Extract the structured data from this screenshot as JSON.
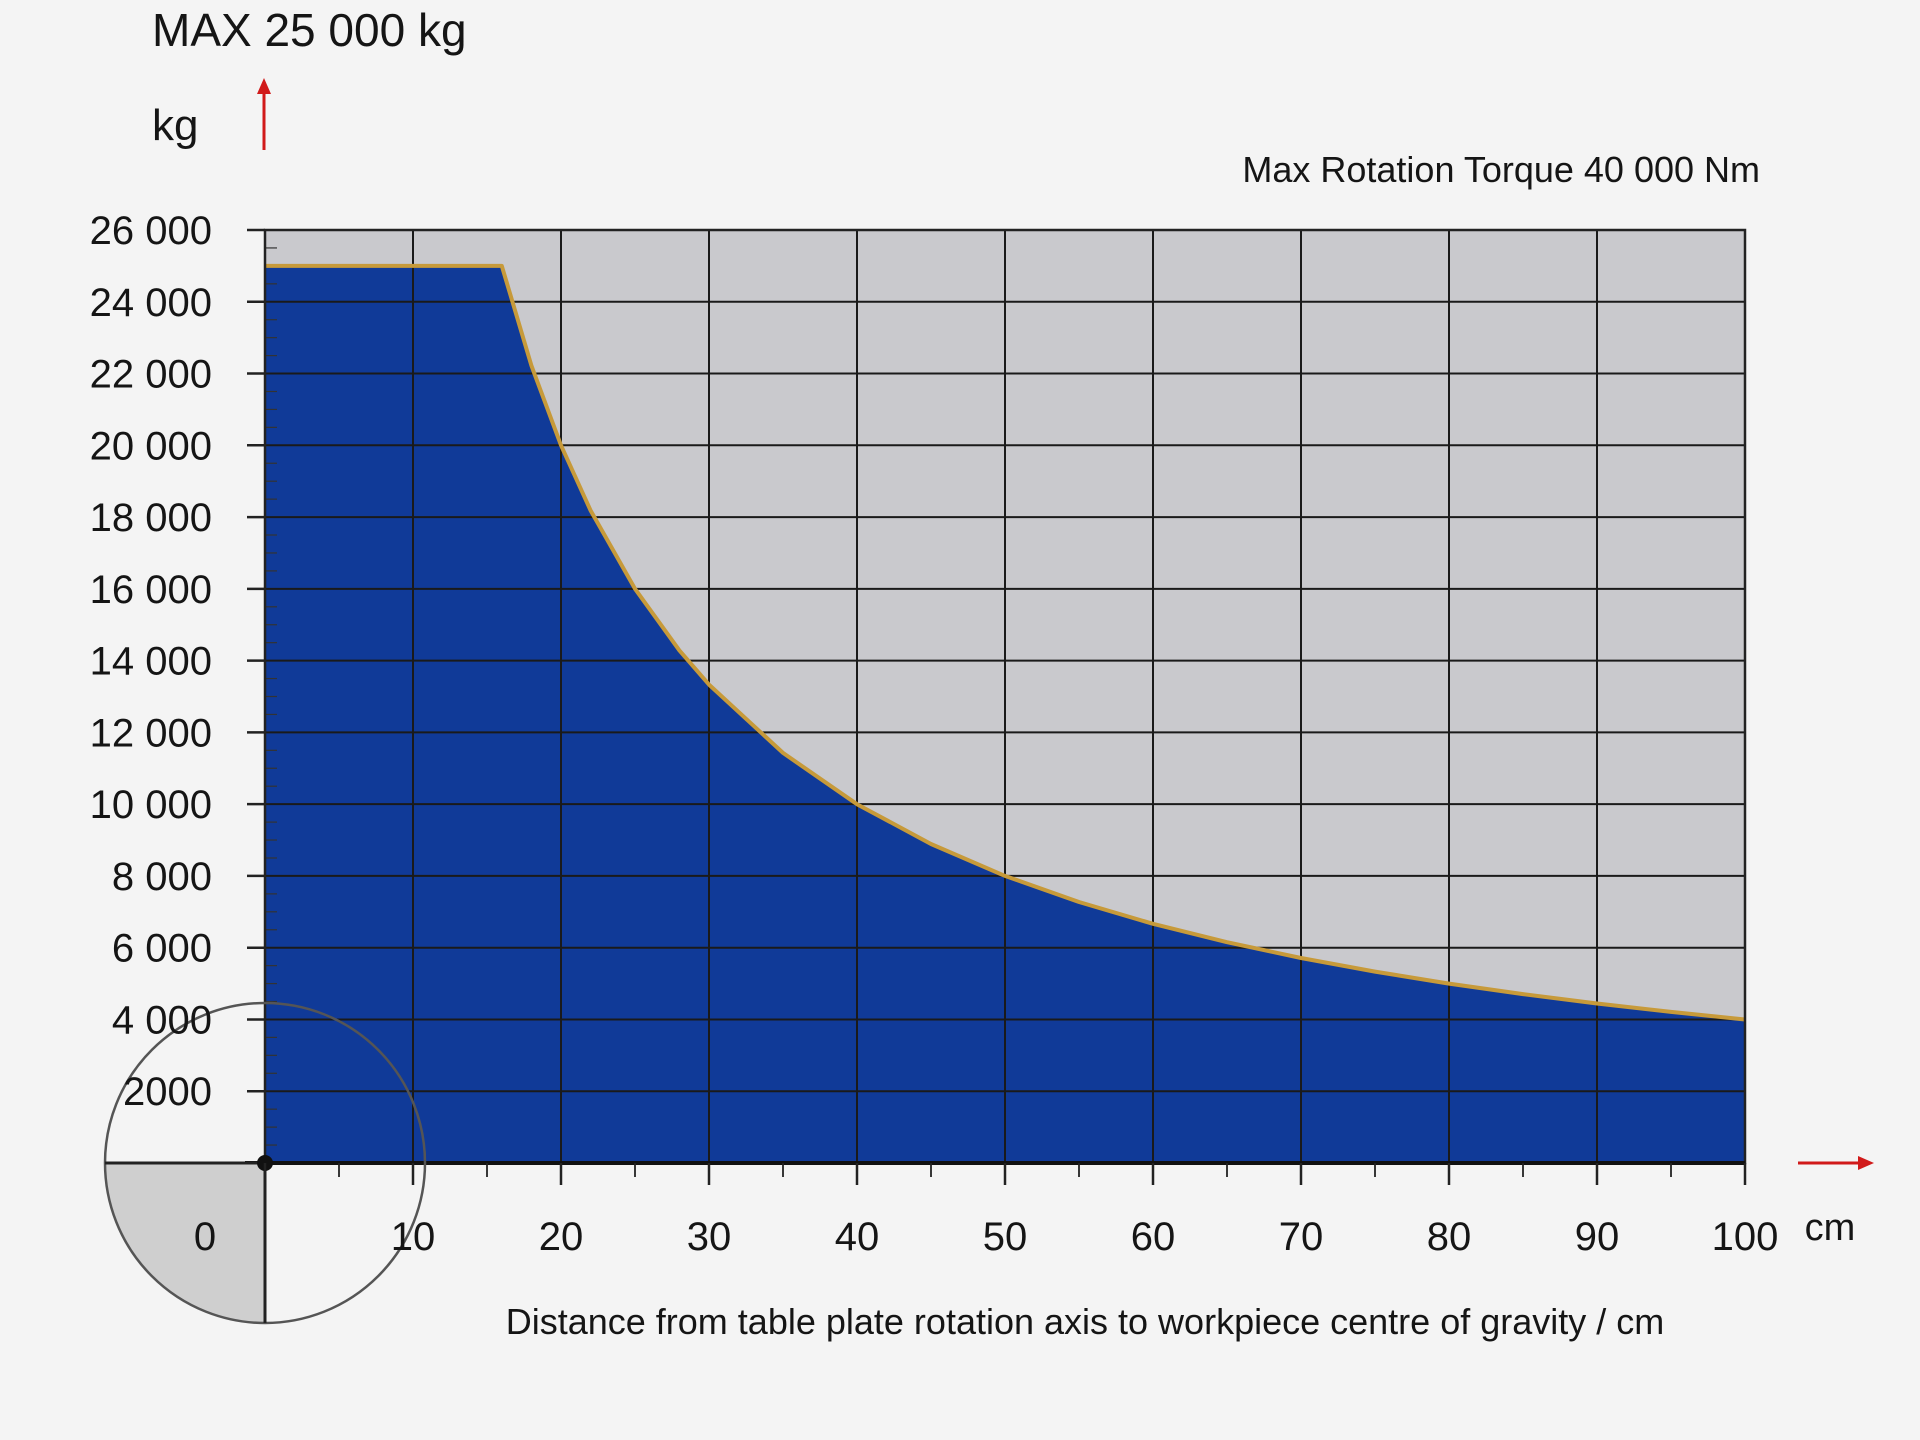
{
  "chart_data": {
    "type": "area",
    "title": "MAX 25 000 kg",
    "subtitle": "Max Rotation Torque 40 000 Nm",
    "ylabel": "kg",
    "xlabel": "Distance from table plate rotation axis to workpiece centre of gravity / cm",
    "x_unit": "cm",
    "xlim": [
      0,
      100
    ],
    "ylim": [
      0,
      26000
    ],
    "x_ticks": [
      0,
      10,
      20,
      30,
      40,
      50,
      60,
      70,
      80,
      90,
      100
    ],
    "x_tick_labels": [
      "0",
      "10",
      "20",
      "30",
      "40",
      "50",
      "60",
      "70",
      "80",
      "90",
      "100"
    ],
    "y_ticks": [
      2000,
      4000,
      6000,
      8000,
      10000,
      12000,
      14000,
      16000,
      18000,
      20000,
      22000,
      24000,
      26000
    ],
    "y_tick_labels": [
      "2000",
      "4 000",
      "6 000",
      "8 000",
      "10 000",
      "12 000",
      "14 000",
      "16 000",
      "18 000",
      "20 000",
      "22 000",
      "24 000",
      "26 000"
    ],
    "grid": true,
    "series": [
      {
        "x": [
          0,
          16,
          18,
          20,
          22,
          25,
          28,
          30,
          35,
          40,
          45,
          50,
          55,
          60,
          65,
          70,
          75,
          80,
          85,
          90,
          95,
          100
        ],
        "values": [
          25000,
          25000,
          22222,
          20000,
          18182,
          16000,
          14286,
          13333,
          11429,
          10000,
          8889,
          8000,
          7273,
          6667,
          6154,
          5714,
          5333,
          5000,
          4706,
          4444,
          4211,
          4000
        ]
      }
    ],
    "colors": {
      "fill": "#103a98",
      "line": "#c79a3a",
      "plot_bg": "#c9c9cd",
      "grid": "#1a1a1a",
      "arrow": "#d11a1a"
    }
  }
}
